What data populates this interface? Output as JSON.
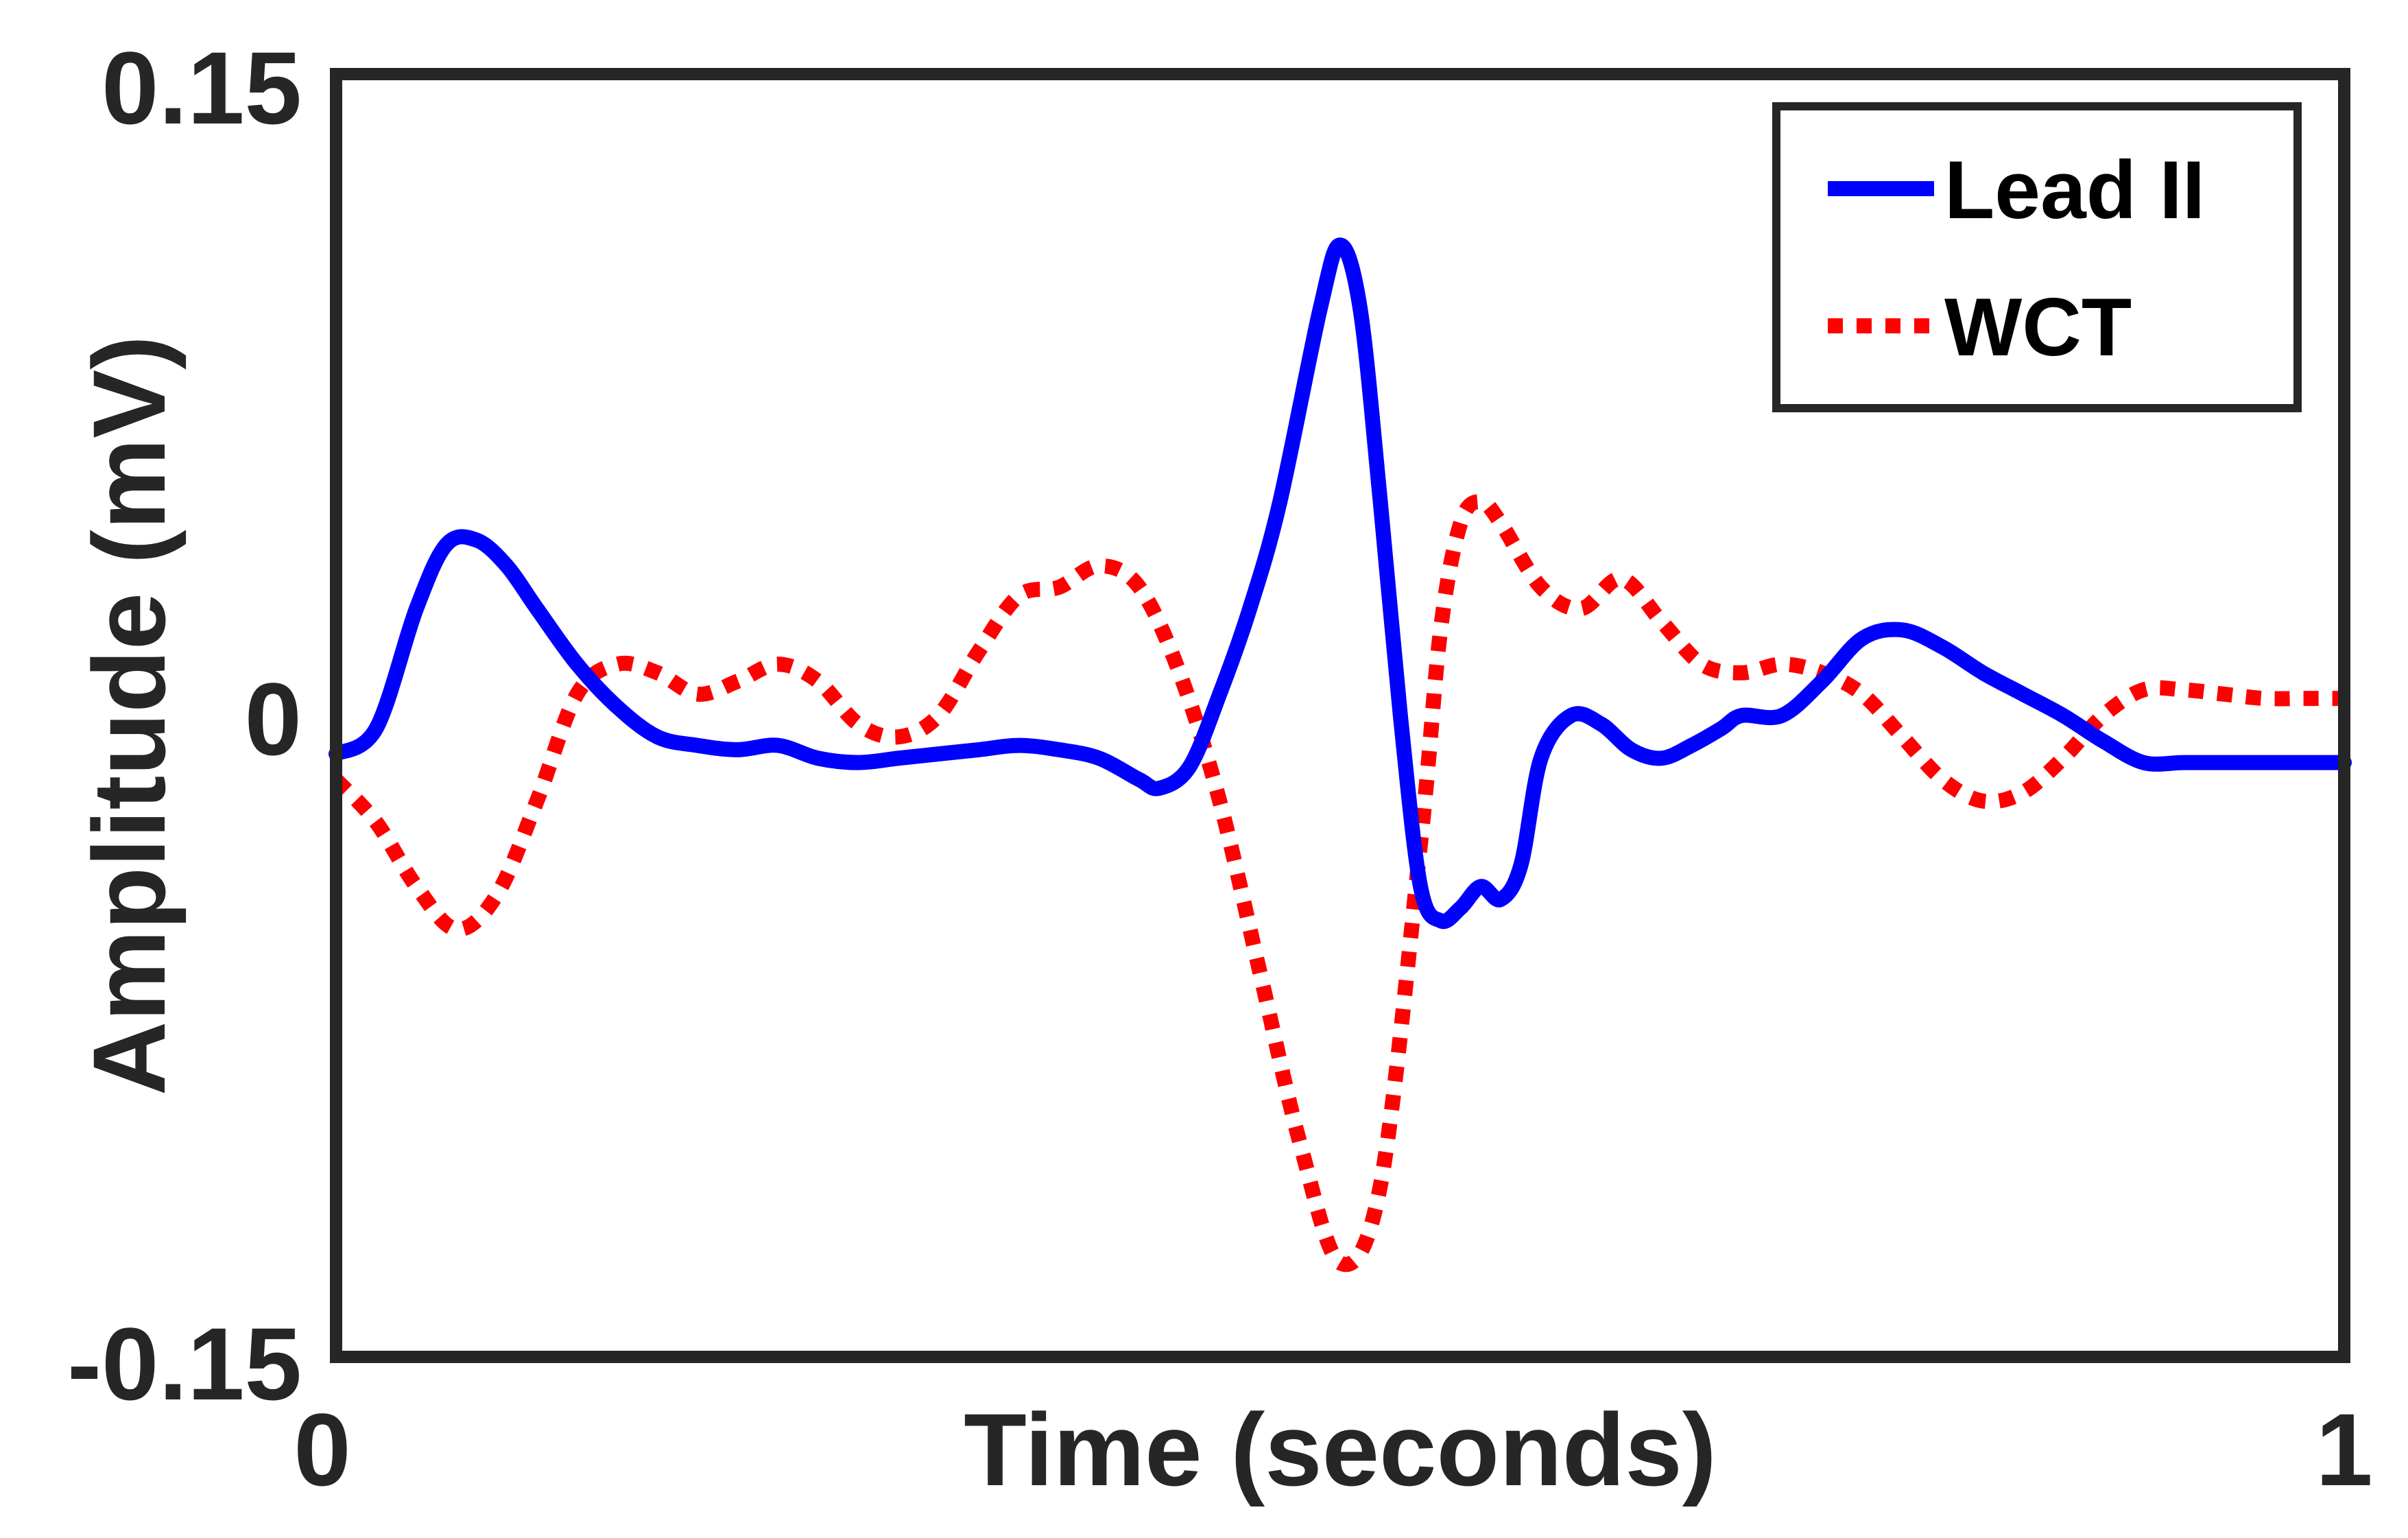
{
  "chart_data": {
    "type": "line",
    "title": "",
    "xlabel": "Time (seconds)",
    "ylabel": "Amplitude (mV)",
    "xlim": [
      0,
      1
    ],
    "ylim": [
      -0.15,
      0.15
    ],
    "x_ticks": [
      "0",
      "1"
    ],
    "y_ticks": [
      "-0.15",
      "0",
      "0.15"
    ],
    "grid": false,
    "legend_position": "top-right",
    "series": [
      {
        "name": "Lead II",
        "color": "#0000ff",
        "line_style": "solid",
        "x": [
          0,
          0.02,
          0.04,
          0.055,
          0.07,
          0.085,
          0.1,
          0.12,
          0.14,
          0.16,
          0.18,
          0.2,
          0.22,
          0.24,
          0.26,
          0.28,
          0.3,
          0.32,
          0.34,
          0.36,
          0.38,
          0.4,
          0.41,
          0.425,
          0.44,
          0.455,
          0.47,
          0.49,
          0.5,
          0.51,
          0.52,
          0.53,
          0.54,
          0.55,
          0.56,
          0.57,
          0.58,
          0.59,
          0.6,
          0.615,
          0.63,
          0.645,
          0.66,
          0.675,
          0.69,
          0.7,
          0.72,
          0.74,
          0.76,
          0.78,
          0.8,
          0.82,
          0.84,
          0.86,
          0.88,
          0.9,
          0.92,
          0.94,
          0.96,
          0.98,
          1.0
        ],
        "values": [
          -0.009,
          -0.003,
          0.025,
          0.04,
          0.041,
          0.035,
          0.025,
          0.012,
          0.002,
          -0.005,
          -0.007,
          -0.008,
          -0.007,
          -0.01,
          -0.011,
          -0.01,
          -0.009,
          -0.008,
          -0.007,
          -0.008,
          -0.01,
          -0.015,
          -0.017,
          -0.012,
          0.005,
          0.025,
          0.05,
          0.095,
          0.11,
          0.095,
          0.05,
          0.0,
          -0.04,
          -0.048,
          -0.045,
          -0.04,
          -0.043,
          -0.035,
          -0.01,
          0.0,
          -0.002,
          -0.008,
          -0.01,
          -0.007,
          -0.003,
          0.0,
          0.0,
          0.008,
          0.018,
          0.02,
          0.016,
          0.01,
          0.005,
          0.0,
          -0.006,
          -0.011,
          -0.011,
          -0.011,
          -0.011,
          -0.011,
          -0.011
        ]
      },
      {
        "name": "WCT",
        "color": "#ff0000",
        "line_style": "dotted",
        "x": [
          0,
          0.02,
          0.04,
          0.06,
          0.08,
          0.1,
          0.12,
          0.14,
          0.16,
          0.18,
          0.2,
          0.22,
          0.24,
          0.26,
          0.28,
          0.3,
          0.32,
          0.34,
          0.36,
          0.38,
          0.4,
          0.42,
          0.44,
          0.46,
          0.48,
          0.5,
          0.52,
          0.54,
          0.55,
          0.56,
          0.57,
          0.58,
          0.6,
          0.62,
          0.64,
          0.66,
          0.68,
          0.7,
          0.72,
          0.74,
          0.76,
          0.78,
          0.8,
          0.82,
          0.84,
          0.86,
          0.88,
          0.9,
          0.92,
          0.94,
          0.96,
          0.98,
          1.0
        ],
        "values": [
          -0.015,
          -0.025,
          -0.04,
          -0.05,
          -0.042,
          -0.02,
          0.005,
          0.012,
          0.01,
          0.005,
          0.008,
          0.012,
          0.008,
          -0.002,
          -0.005,
          0.0,
          0.015,
          0.028,
          0.03,
          0.035,
          0.03,
          0.01,
          -0.02,
          -0.06,
          -0.1,
          -0.128,
          -0.11,
          -0.03,
          0.02,
          0.045,
          0.05,
          0.045,
          0.03,
          0.025,
          0.032,
          0.022,
          0.012,
          0.01,
          0.012,
          0.01,
          0.005,
          -0.005,
          -0.015,
          -0.02,
          -0.018,
          -0.01,
          0.0,
          0.006,
          0.006,
          0.005,
          0.004,
          0.004,
          0.004
        ]
      }
    ]
  }
}
